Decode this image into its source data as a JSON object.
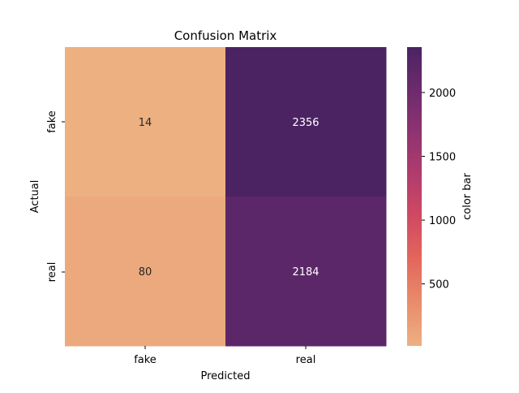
{
  "chart_data": {
    "type": "heatmap",
    "title": "Confusion Matrix",
    "xlabel": "Predicted",
    "ylabel": "Actual",
    "x_categories": [
      "fake",
      "real"
    ],
    "y_categories": [
      "fake",
      "real"
    ],
    "values": [
      [
        14,
        2356
      ],
      [
        80,
        2184
      ]
    ],
    "colorbar": {
      "label": "color bar",
      "range": [
        14,
        2356
      ],
      "ticks": [
        500,
        1000,
        1500,
        2000
      ],
      "colormap": "flare",
      "colormap_stops": [
        "#edb081",
        "#e98d6b",
        "#e3685c",
        "#d14a61",
        "#b13c6c",
        "#8f3371",
        "#6c2b6d",
        "#4b2362"
      ]
    },
    "text_color_light": "#ffffff",
    "text_color_dark": "#262626"
  }
}
